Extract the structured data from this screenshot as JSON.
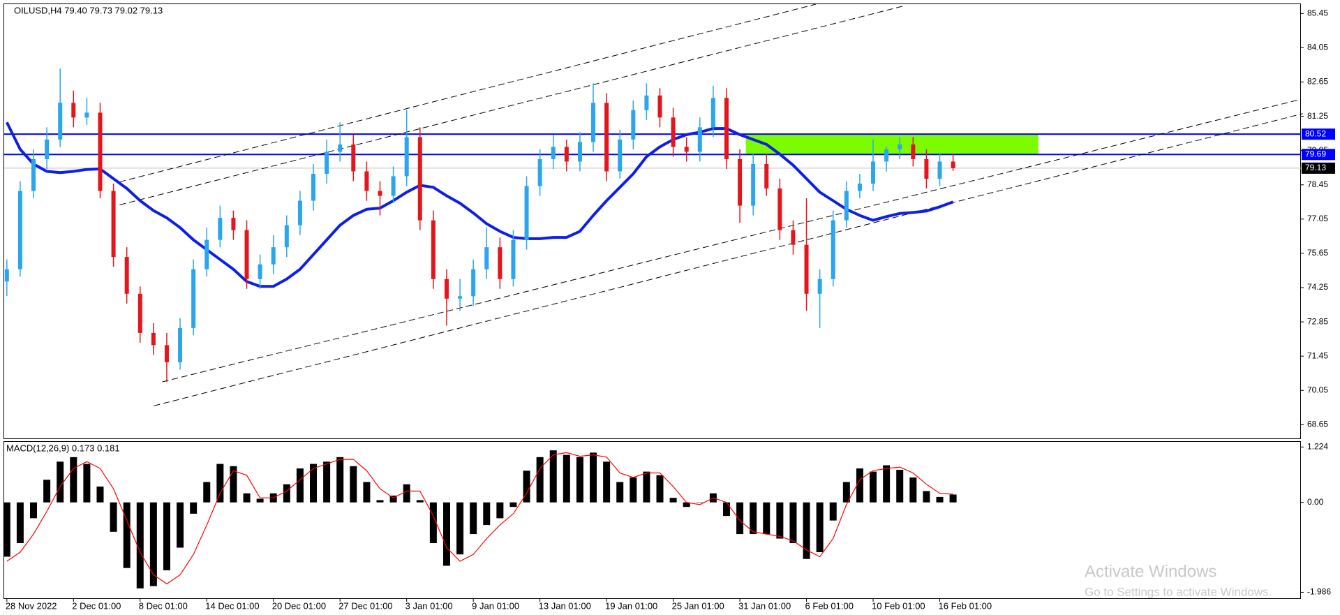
{
  "chart_data": [
    {
      "type": "candlestick",
      "title": "OILUSD,H4  79.40 79.73 79.02 79.13",
      "open": [
        74.5,
        75.0,
        78.2,
        79.5,
        80.3,
        81.8,
        81.2,
        81.4,
        78.2,
        75.5,
        74.0,
        72.4,
        71.9,
        71.2,
        72.6,
        75.0,
        76.2,
        77.1,
        76.6,
        74.6,
        75.2,
        75.9,
        76.8,
        77.8,
        78.9,
        79.8,
        80.1,
        79.0,
        78.2,
        78.0,
        78.8,
        80.4,
        77.0,
        74.6,
        73.8,
        73.9,
        75.0,
        75.9,
        74.6,
        76.2,
        78.4,
        79.5,
        80.0,
        79.4,
        80.2,
        81.8,
        79.0,
        80.3,
        81.5,
        82.1,
        81.2,
        80.0,
        79.8,
        80.8,
        82.0,
        79.5,
        77.6,
        79.3,
        78.3,
        76.6,
        76.0,
        74.0,
        74.6,
        77.0,
        78.2,
        78.5,
        79.4,
        79.9,
        80.1,
        79.5,
        78.7,
        79.4
      ],
      "high": [
        75.4,
        78.6,
        79.9,
        80.8,
        83.2,
        82.3,
        82.0,
        81.8,
        78.5,
        75.9,
        74.3,
        72.8,
        72.4,
        73.0,
        75.4,
        76.7,
        77.6,
        77.4,
        77.0,
        75.6,
        76.4,
        77.2,
        78.2,
        79.3,
        80.3,
        81.0,
        80.5,
        79.4,
        78.6,
        79.2,
        81.5,
        80.8,
        77.4,
        75.0,
        74.6,
        75.4,
        76.7,
        76.3,
        76.6,
        78.8,
        79.9,
        80.5,
        80.3,
        80.6,
        82.6,
        82.2,
        80.7,
        81.9,
        82.6,
        82.4,
        81.6,
        80.4,
        81.2,
        82.5,
        82.4,
        79.9,
        79.7,
        79.7,
        78.7,
        77.0,
        77.9,
        75.0,
        77.4,
        78.6,
        78.9,
        80.3,
        80.0,
        80.4,
        80.4,
        79.9,
        79.7,
        79.73
      ],
      "low": [
        73.9,
        74.7,
        77.9,
        79.1,
        80.0,
        80.8,
        80.9,
        77.9,
        75.1,
        73.6,
        72.0,
        71.5,
        70.4,
        70.9,
        72.3,
        74.7,
        75.9,
        76.2,
        74.2,
        74.2,
        74.8,
        75.5,
        76.4,
        77.4,
        78.5,
        79.4,
        78.6,
        77.8,
        77.2,
        77.7,
        78.4,
        76.6,
        74.2,
        72.7,
        73.3,
        73.5,
        74.6,
        74.2,
        74.3,
        75.8,
        78.0,
        79.1,
        79.0,
        79.0,
        79.8,
        78.6,
        78.7,
        79.9,
        81.1,
        80.8,
        79.6,
        79.4,
        79.4,
        80.4,
        79.1,
        76.9,
        77.2,
        78.0,
        76.2,
        75.6,
        73.3,
        72.6,
        74.3,
        76.7,
        77.9,
        78.2,
        79.0,
        79.5,
        79.2,
        78.3,
        78.4,
        79.02
      ],
      "close": [
        75.0,
        78.2,
        79.5,
        80.3,
        81.8,
        81.2,
        81.4,
        78.2,
        75.5,
        74.0,
        72.4,
        71.9,
        71.2,
        72.6,
        75.0,
        76.2,
        77.1,
        76.6,
        74.6,
        75.2,
        75.9,
        76.8,
        77.8,
        78.9,
        79.8,
        80.1,
        79.0,
        78.2,
        78.0,
        78.8,
        80.4,
        77.0,
        74.6,
        73.8,
        73.9,
        75.0,
        75.9,
        74.6,
        76.2,
        78.4,
        79.5,
        80.0,
        79.4,
        80.2,
        81.8,
        79.0,
        80.3,
        81.5,
        82.1,
        81.2,
        80.0,
        79.8,
        80.8,
        82.0,
        79.5,
        77.6,
        79.3,
        78.3,
        76.6,
        76.0,
        74.0,
        74.6,
        77.0,
        78.2,
        78.5,
        79.4,
        79.9,
        80.1,
        79.5,
        78.7,
        79.4,
        79.13
      ],
      "ma": [
        81.0,
        79.9,
        79.3,
        79.0,
        78.95,
        79.0,
        79.08,
        79.1,
        78.7,
        78.3,
        77.8,
        77.4,
        77.1,
        76.7,
        76.2,
        75.8,
        75.4,
        75.0,
        74.5,
        74.3,
        74.3,
        74.6,
        75.0,
        75.6,
        76.2,
        76.8,
        77.2,
        77.45,
        77.5,
        77.8,
        78.15,
        78.43,
        78.35,
        78.0,
        77.7,
        77.3,
        76.86,
        76.55,
        76.3,
        76.25,
        76.25,
        76.3,
        76.3,
        76.55,
        77.2,
        77.8,
        78.35,
        78.9,
        79.6,
        80.0,
        80.3,
        80.5,
        80.6,
        80.75,
        80.75,
        80.5,
        80.3,
        80.1,
        79.7,
        79.25,
        78.7,
        78.15,
        77.8,
        77.45,
        77.2,
        77.0,
        77.15,
        77.28,
        77.32,
        77.38,
        77.55,
        77.75
      ],
      "bull_color": "#2aa6ee",
      "bear_color": "#e5161b",
      "ma_color": "#0b1fe8",
      "xlim": [
        -0.2,
        97.1
      ],
      "xticks": [
        {
          "value": 0,
          "label": "28 Nov 2022"
        },
        {
          "value": 5,
          "label": "2 Dec 01:00"
        },
        {
          "value": 10,
          "label": "8 Dec 01:00"
        },
        {
          "value": 15,
          "label": "14 Dec 01:00"
        },
        {
          "value": 20,
          "label": "20 Dec 01:00"
        },
        {
          "value": 25,
          "label": "27 Dec 01:00"
        },
        {
          "value": 30,
          "label": "3 Jan 01:00"
        },
        {
          "value": 35,
          "label": "9 Jan 01:00"
        },
        {
          "value": 40,
          "label": "13 Jan 01:00"
        },
        {
          "value": 45,
          "label": "19 Jan 01:00"
        },
        {
          "value": 50,
          "label": "25 Jan 01:00"
        },
        {
          "value": 55,
          "label": "31 Jan 01:00"
        },
        {
          "value": 60,
          "label": "6 Feb 01:00"
        },
        {
          "value": 65,
          "label": "10 Feb 01:00"
        },
        {
          "value": 70,
          "label": "16 Feb 01:00"
        }
      ],
      "ylim": [
        68.09,
        85.83
      ],
      "yticks": [
        85.45,
        84.05,
        82.65,
        81.25,
        79.85,
        78.45,
        77.05,
        75.65,
        74.25,
        72.85,
        71.45,
        70.05,
        68.65
      ],
      "hlines": [
        {
          "value": 80.52,
          "color": "#0000ff"
        },
        {
          "value": 79.69,
          "color": "#0000ff"
        }
      ],
      "price_line": 79.13,
      "zone": {
        "x": [
          55.45,
          77.4
        ],
        "y": [
          79.69,
          80.52
        ],
        "color": "#7cfc00"
      },
      "trendlines": [
        {
          "x": [
            8.46,
            60.71
          ],
          "y": [
            78.57,
            85.83
          ]
        },
        {
          "x": [
            8.46,
            67.31
          ],
          "y": [
            77.63,
            85.76
          ]
        },
        {
          "x": [
            11.67,
            96.92
          ],
          "y": [
            70.4,
            81.92
          ]
        },
        {
          "x": [
            11.03,
            97.24
          ],
          "y": [
            69.42,
            81.36
          ]
        }
      ],
      "watermark": [
        "Activate Windows",
        "Go to Settings to activate Windows."
      ]
    },
    {
      "type": "macd",
      "title": "MACD(12,26,9) 0.173 0.181",
      "histogram": [
        -1.2,
        -0.9,
        -0.35,
        0.5,
        0.9,
        1.0,
        0.85,
        0.35,
        -0.65,
        -1.45,
        -1.9,
        -1.85,
        -1.5,
        -1.0,
        -0.25,
        0.45,
        0.85,
        0.8,
        0.2,
        0.08,
        0.2,
        0.4,
        0.75,
        0.85,
        0.9,
        1.0,
        0.8,
        0.45,
        0.05,
        0.15,
        0.4,
        0.05,
        -0.9,
        -1.4,
        -1.15,
        -0.7,
        -0.5,
        -0.35,
        -0.1,
        0.7,
        1.0,
        1.15,
        1.05,
        1.0,
        1.1,
        0.9,
        0.45,
        0.55,
        0.68,
        0.6,
        0.1,
        -0.1,
        0.0,
        0.2,
        -0.3,
        -0.7,
        -0.7,
        -0.7,
        -0.8,
        -0.9,
        -1.25,
        -1.1,
        -0.4,
        0.45,
        0.75,
        0.68,
        0.82,
        0.72,
        0.55,
        0.25,
        0.12,
        0.173
      ],
      "signal": [
        -1.3,
        -1.1,
        -0.7,
        -0.2,
        0.35,
        0.75,
        0.9,
        0.75,
        0.3,
        -0.4,
        -1.1,
        -1.6,
        -1.8,
        -1.6,
        -1.15,
        -0.5,
        0.2,
        0.7,
        0.6,
        0.1,
        0.1,
        0.25,
        0.5,
        0.75,
        0.85,
        0.95,
        0.95,
        0.7,
        0.3,
        0.1,
        0.25,
        0.25,
        -0.3,
        -1.0,
        -1.3,
        -1.15,
        -0.8,
        -0.5,
        -0.25,
        0.2,
        0.75,
        1.05,
        1.1,
        1.02,
        1.05,
        1.0,
        0.65,
        0.55,
        0.65,
        0.65,
        0.35,
        0.0,
        -0.05,
        0.1,
        0.0,
        -0.4,
        -0.65,
        -0.7,
        -0.75,
        -0.85,
        -1.05,
        -1.2,
        -0.8,
        -0.05,
        0.5,
        0.7,
        0.75,
        0.78,
        0.65,
        0.4,
        0.2,
        0.181
      ],
      "hist_color": "#000000",
      "signal_color": "#ff0000",
      "ylim": [
        -2.118,
        1.337
      ],
      "yticks": [
        1.224,
        {
          "value": 0,
          "label": "0.00"
        },
        -1.986
      ]
    }
  ]
}
